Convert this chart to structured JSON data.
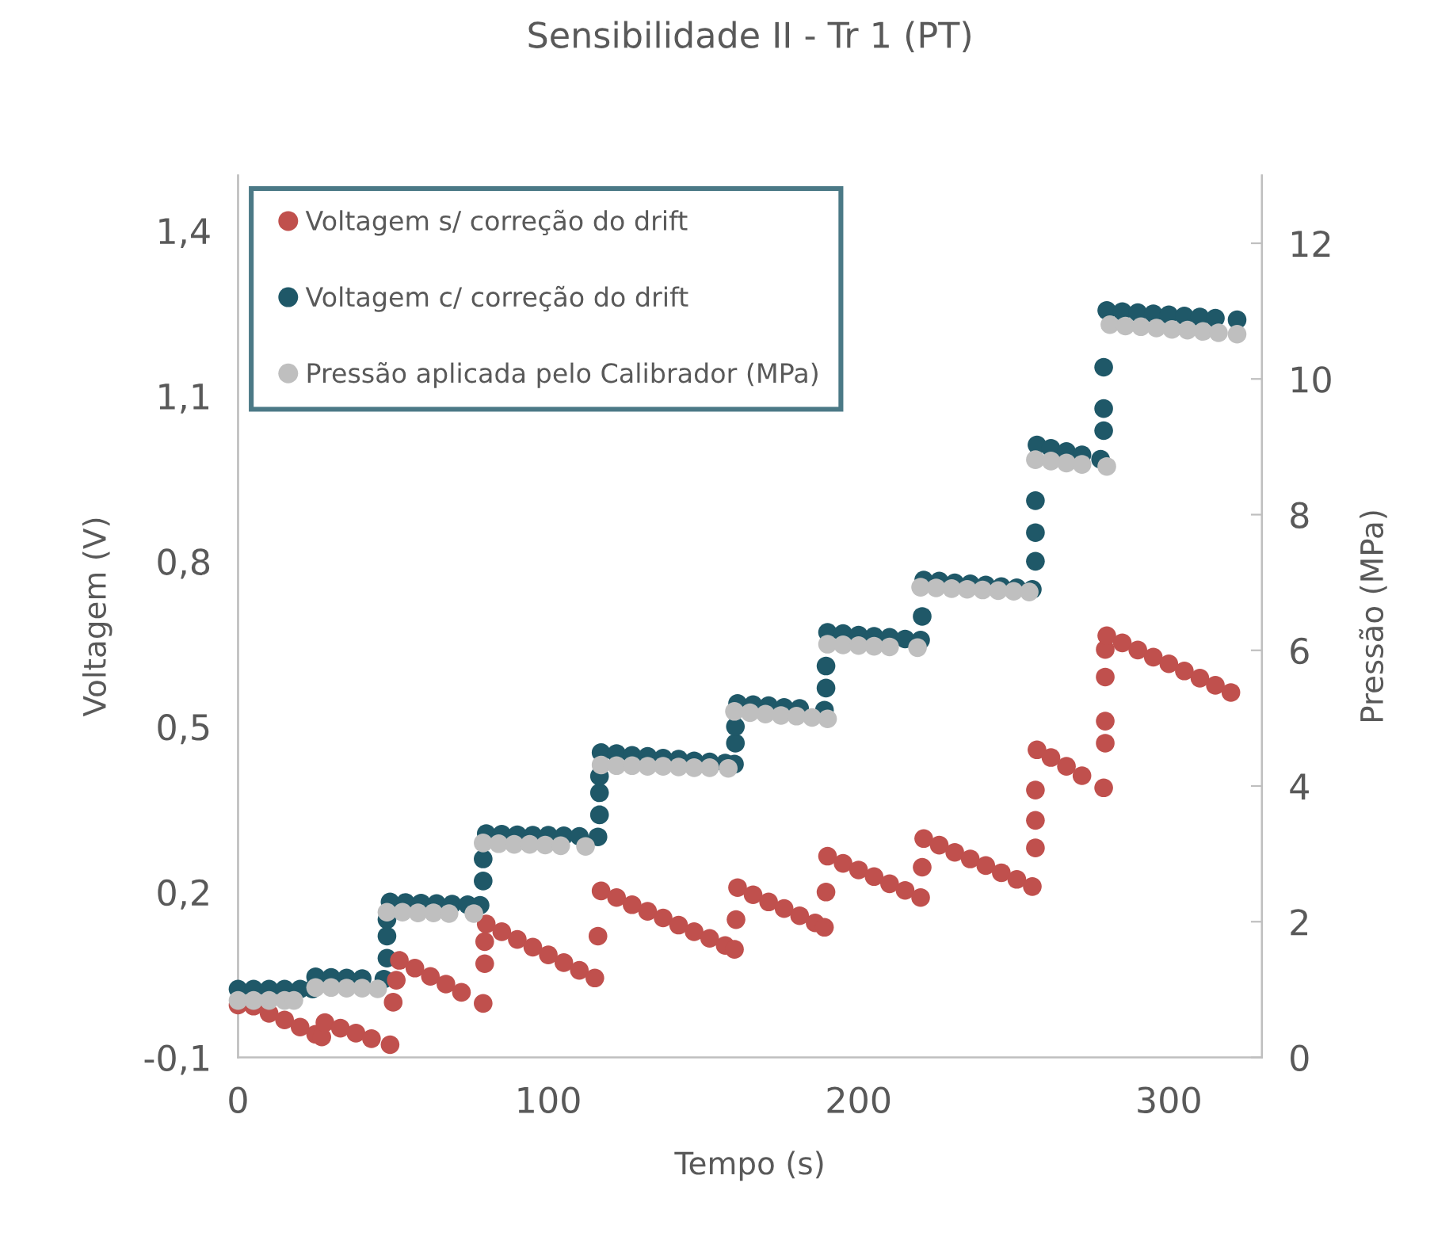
{
  "chart_data": {
    "type": "scatter",
    "title": "Sensibilidade II - Tr 1 (PT)",
    "xlabel": "Tempo (s)",
    "ylabel": "Voltagem (V)",
    "y2label": "Pressão (MPa)",
    "xlim": [
      0,
      330
    ],
    "xticks": [
      0,
      100,
      200,
      300
    ],
    "ylim": [
      -0.1,
      1.5
    ],
    "yticks": [
      {
        "value": -0.1,
        "label": "-0,1"
      },
      {
        "value": 0.2,
        "label": "0,2"
      },
      {
        "value": 0.5,
        "label": "0,5"
      },
      {
        "value": 0.8,
        "label": "0,8"
      },
      {
        "value": 1.1,
        "label": "1,1"
      },
      {
        "value": 1.4,
        "label": "1,4"
      }
    ],
    "y2lim": [
      0,
      13
    ],
    "y2ticks": [
      0,
      2,
      4,
      6,
      8,
      10,
      12
    ],
    "grid": false,
    "legend": "top left",
    "marker": "circle",
    "series": [
      {
        "name": "Voltagem s/ correção do drift",
        "color": "#c0504d",
        "x": [
          0,
          5,
          10,
          15,
          20,
          25,
          27,
          28,
          33,
          38,
          43,
          49,
          50,
          51,
          52,
          57,
          62,
          67,
          72,
          79,
          79.5,
          79.5,
          80,
          85,
          90,
          95,
          100,
          105,
          110,
          115,
          116,
          117,
          122,
          127,
          132,
          137,
          142,
          147,
          152,
          157,
          160,
          160.5,
          161,
          166,
          171,
          176,
          181,
          186,
          189,
          189.5,
          190,
          195,
          200,
          205,
          210,
          215,
          220,
          220.5,
          221,
          226,
          231,
          236,
          241,
          246,
          251,
          256,
          257,
          257,
          257,
          257.5,
          262,
          267,
          272,
          279,
          279.5,
          279.5,
          279.5,
          279.5,
          280,
          285,
          290,
          295,
          300,
          305,
          310,
          315,
          320
        ],
        "values": [
          -0.005,
          -0.007,
          -0.02,
          -0.032,
          -0.045,
          -0.058,
          -0.063,
          -0.037,
          -0.047,
          -0.056,
          -0.066,
          -0.077,
          0.0,
          0.04,
          0.076,
          0.062,
          0.047,
          0.033,
          0.018,
          -0.002,
          0.07,
          0.11,
          0.142,
          0.128,
          0.114,
          0.1,
          0.086,
          0.072,
          0.058,
          0.044,
          0.12,
          0.202,
          0.19,
          0.177,
          0.165,
          0.153,
          0.14,
          0.128,
          0.116,
          0.103,
          0.096,
          0.15,
          0.208,
          0.195,
          0.182,
          0.17,
          0.157,
          0.144,
          0.136,
          0.2,
          0.265,
          0.252,
          0.24,
          0.228,
          0.215,
          0.203,
          0.19,
          0.245,
          0.297,
          0.285,
          0.272,
          0.26,
          0.248,
          0.235,
          0.223,
          0.21,
          0.28,
          0.33,
          0.385,
          0.458,
          0.444,
          0.428,
          0.411,
          0.389,
          0.47,
          0.51,
          0.59,
          0.64,
          0.665,
          0.652,
          0.639,
          0.626,
          0.614,
          0.601,
          0.588,
          0.575,
          0.562
        ]
      },
      {
        "name": "Voltagem c/ correção do drift",
        "color": "#1f5868",
        "x": [
          0,
          5,
          10,
          15,
          20,
          24,
          25,
          30,
          35,
          40,
          47,
          48,
          48,
          48,
          49,
          54,
          59,
          64,
          69,
          74,
          78,
          79,
          79,
          80,
          85,
          90,
          95,
          100,
          105,
          110,
          116,
          116.5,
          116.5,
          116.5,
          117,
          122,
          127,
          132,
          137,
          142,
          147,
          152,
          157,
          160,
          160.3,
          160.3,
          161,
          166,
          171,
          176,
          181,
          189,
          189.5,
          189.5,
          190,
          195,
          200,
          205,
          210,
          215,
          220,
          220.5,
          221,
          226,
          231,
          236,
          241,
          246,
          251,
          256,
          257,
          257,
          257,
          257.5,
          262,
          267,
          272,
          278,
          279,
          279,
          279,
          280,
          285,
          290,
          295,
          300,
          305,
          310,
          315,
          322
        ],
        "values": [
          0.024,
          0.024,
          0.024,
          0.024,
          0.024,
          0.024,
          0.046,
          0.045,
          0.044,
          0.043,
          0.042,
          0.08,
          0.12,
          0.15,
          0.182,
          0.181,
          0.18,
          0.179,
          0.178,
          0.177,
          0.176,
          0.22,
          0.26,
          0.306,
          0.305,
          0.304,
          0.303,
          0.303,
          0.302,
          0.301,
          0.3,
          0.34,
          0.38,
          0.41,
          0.453,
          0.451,
          0.448,
          0.446,
          0.443,
          0.441,
          0.438,
          0.436,
          0.434,
          0.432,
          0.47,
          0.5,
          0.542,
          0.54,
          0.538,
          0.535,
          0.533,
          0.53,
          0.57,
          0.61,
          0.671,
          0.669,
          0.666,
          0.664,
          0.662,
          0.659,
          0.657,
          0.7,
          0.766,
          0.764,
          0.761,
          0.759,
          0.757,
          0.754,
          0.752,
          0.749,
          0.8,
          0.852,
          0.91,
          1.011,
          1.005,
          0.999,
          0.993,
          0.985,
          1.037,
          1.077,
          1.152,
          1.255,
          1.253,
          1.251,
          1.249,
          1.247,
          1.245,
          1.243,
          1.241,
          1.238
        ]
      },
      {
        "name": "Pressão aplicada pelo Calibrador (MPa)",
        "color": "#bfbfbf",
        "axis": "y2",
        "x": [
          0,
          5,
          10,
          15,
          18,
          25,
          30,
          35,
          40,
          45,
          48,
          53,
          58,
          63,
          68,
          76,
          79,
          84,
          89,
          94,
          99,
          104,
          112,
          117,
          122,
          127,
          132,
          137,
          142,
          147,
          152,
          158,
          160,
          165,
          170,
          175,
          180,
          185,
          190,
          190,
          195,
          200,
          205,
          210,
          219,
          220,
          225,
          230,
          235,
          240,
          245,
          250,
          255,
          257,
          262,
          267,
          272,
          280,
          281,
          286,
          291,
          296,
          301,
          306,
          311,
          316,
          322
        ],
        "values": [
          0.84,
          0.84,
          0.84,
          0.84,
          0.84,
          1.03,
          1.03,
          1.02,
          1.02,
          1.01,
          2.14,
          2.14,
          2.13,
          2.13,
          2.12,
          2.12,
          3.16,
          3.15,
          3.14,
          3.14,
          3.13,
          3.12,
          3.11,
          4.31,
          4.3,
          4.3,
          4.29,
          4.29,
          4.28,
          4.27,
          4.27,
          4.26,
          5.1,
          5.08,
          5.06,
          5.04,
          5.03,
          5.01,
          4.99,
          6.09,
          6.08,
          6.07,
          6.06,
          6.05,
          6.04,
          6.93,
          6.92,
          6.91,
          6.9,
          6.89,
          6.88,
          6.87,
          6.86,
          8.81,
          8.79,
          8.76,
          8.74,
          8.71,
          10.8,
          10.78,
          10.77,
          10.75,
          10.73,
          10.72,
          10.7,
          10.68,
          10.66
        ]
      }
    ]
  }
}
